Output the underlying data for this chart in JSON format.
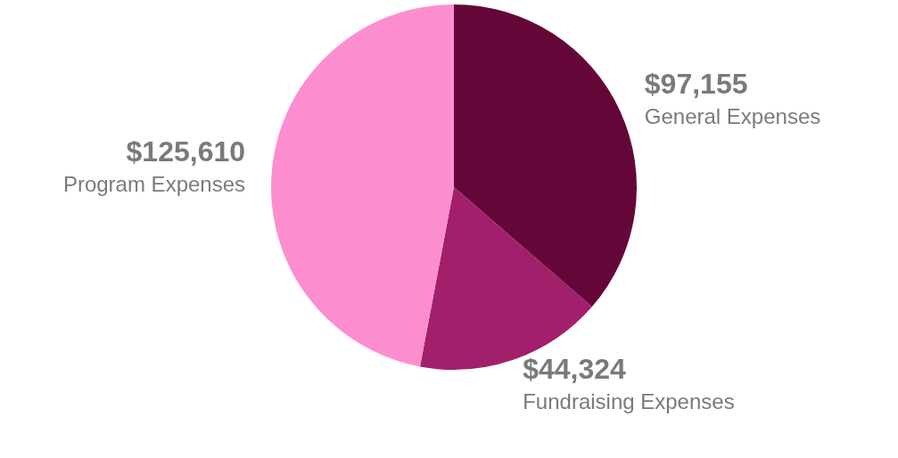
{
  "chart_data": {
    "type": "pie",
    "categories": [
      "General Expenses",
      "Fundraising Expenses",
      "Program Expenses"
    ],
    "values": [
      97155,
      44324,
      125610
    ],
    "colors": [
      "#650639",
      "#a21f6b",
      "#fc8ed0"
    ],
    "value_labels": [
      "$97,155",
      "$44,324",
      "$125,610"
    ],
    "legend": false
  }
}
